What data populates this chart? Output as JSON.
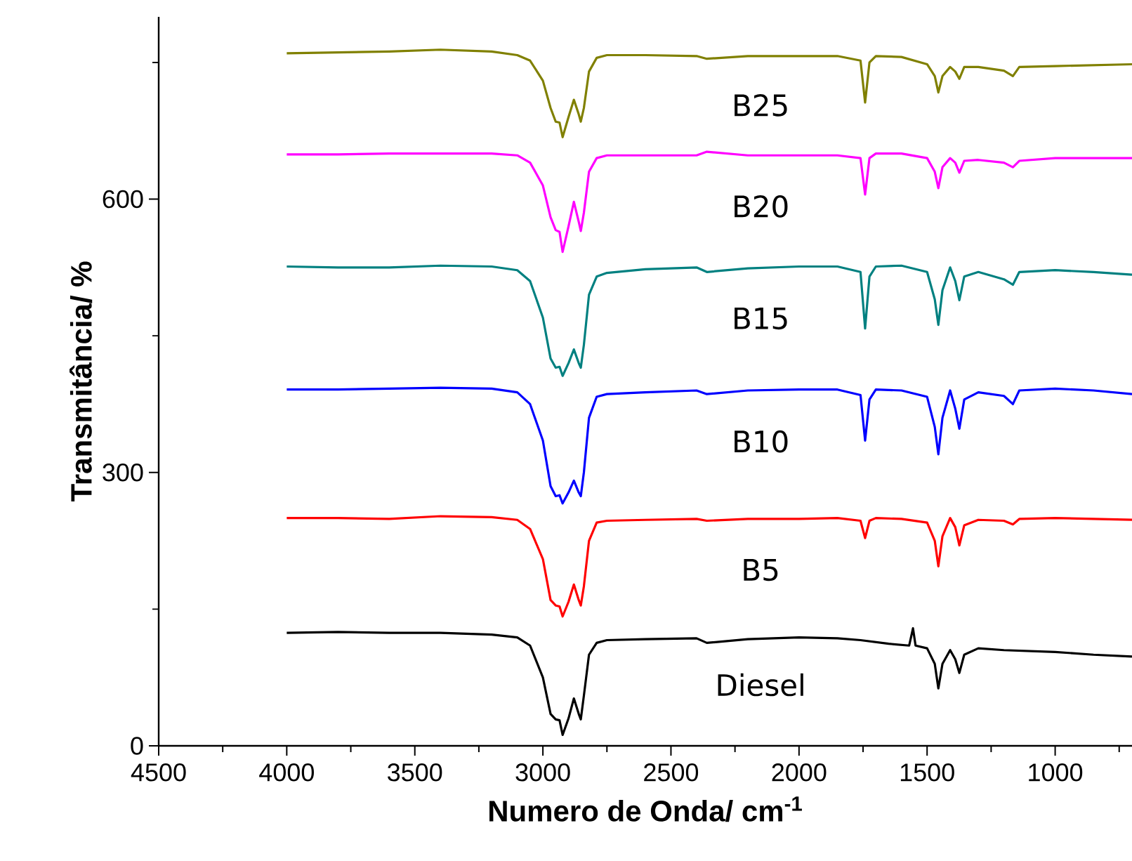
{
  "chart_data": {
    "type": "line",
    "xlabel": "Numero de Onda/ cm$^{-1}$",
    "ylabel": "Transmitância/ %",
    "xlim": [
      4500,
      700
    ],
    "ylim": [
      0,
      800
    ],
    "xticks": [
      4500,
      {
        "value": 4250,
        "label": null
      },
      4000,
      {
        "value": 3750,
        "label": null
      },
      3500,
      {
        "value": 3250,
        "label": null
      },
      3000,
      {
        "value": 2750,
        "label": null
      },
      2500,
      {
        "value": 2250,
        "label": null
      },
      2000,
      {
        "value": 1750,
        "label": null
      },
      1500,
      {
        "value": 1250,
        "label": null
      },
      1000,
      {
        "value": 750,
        "label": null
      }
    ],
    "yticks": [
      0,
      {
        "value": 150,
        "label": null
      },
      300,
      {
        "value": 450,
        "label": null
      },
      600,
      {
        "value": 750,
        "label": null
      }
    ],
    "legend": false,
    "grid": false,
    "marker": "none",
    "line_style": "solid",
    "series": [
      {
        "name": "B25",
        "color": "#808000",
        "x": [
          4000,
          3800,
          3600,
          3400,
          3200,
          3100,
          3050,
          3000,
          2970,
          2950,
          2935,
          2923,
          2900,
          2879,
          2860,
          2852,
          2840,
          2820,
          2790,
          2750,
          2600,
          2400,
          2360,
          2200,
          2000,
          1850,
          1760,
          1742,
          1725,
          1700,
          1600,
          1500,
          1470,
          1456,
          1440,
          1410,
          1390,
          1374,
          1355,
          1300,
          1200,
          1165,
          1140,
          1000,
          850,
          700
        ],
        "values": [
          760,
          761,
          762,
          764,
          762,
          758,
          752,
          730,
          700,
          685,
          684,
          668,
          690,
          709,
          693,
          685,
          700,
          740,
          755,
          758,
          758,
          757,
          754,
          757,
          757,
          757,
          752,
          706,
          750,
          757,
          756,
          748,
          735,
          717,
          735,
          745,
          740,
          732,
          745,
          745,
          741,
          735,
          745,
          746,
          747,
          748
        ]
      },
      {
        "name": "B20",
        "color": "#ff00ff",
        "x": [
          4000,
          3800,
          3600,
          3400,
          3200,
          3100,
          3050,
          3000,
          2970,
          2950,
          2935,
          2923,
          2900,
          2879,
          2860,
          2852,
          2840,
          2820,
          2790,
          2750,
          2600,
          2400,
          2360,
          2200,
          2000,
          1850,
          1760,
          1742,
          1725,
          1700,
          1600,
          1500,
          1470,
          1456,
          1440,
          1410,
          1390,
          1374,
          1355,
          1300,
          1200,
          1165,
          1140,
          1000,
          850,
          700
        ],
        "values": [
          649,
          649,
          650,
          650,
          650,
          648,
          640,
          615,
          580,
          566,
          564,
          542,
          570,
          597,
          575,
          565,
          585,
          630,
          645,
          648,
          648,
          648,
          652,
          648,
          648,
          648,
          645,
          605,
          645,
          650,
          650,
          645,
          630,
          612,
          635,
          645,
          640,
          629,
          642,
          643,
          640,
          635,
          642,
          645,
          645,
          645
        ]
      },
      {
        "name": "B15",
        "color": "#008080",
        "x": [
          4000,
          3800,
          3600,
          3400,
          3200,
          3100,
          3050,
          3000,
          2970,
          2950,
          2935,
          2923,
          2900,
          2879,
          2860,
          2852,
          2840,
          2820,
          2790,
          2750,
          2600,
          2400,
          2360,
          2200,
          2000,
          1850,
          1760,
          1742,
          1725,
          1700,
          1600,
          1500,
          1470,
          1456,
          1440,
          1410,
          1390,
          1374,
          1355,
          1300,
          1200,
          1165,
          1140,
          1000,
          850,
          700
        ],
        "values": [
          526,
          525,
          525,
          527,
          526,
          522,
          510,
          470,
          425,
          415,
          416,
          406,
          420,
          435,
          420,
          415,
          440,
          495,
          515,
          519,
          523,
          525,
          520,
          524,
          526,
          526,
          520,
          458,
          515,
          526,
          527,
          520,
          490,
          462,
          500,
          525,
          510,
          489,
          515,
          520,
          512,
          506,
          520,
          522,
          520,
          517
        ]
      },
      {
        "name": "B10",
        "color": "#0000ff",
        "x": [
          4000,
          3800,
          3600,
          3400,
          3200,
          3100,
          3050,
          3000,
          2970,
          2950,
          2935,
          2923,
          2900,
          2879,
          2860,
          2852,
          2840,
          2820,
          2790,
          2750,
          2600,
          2400,
          2360,
          2200,
          2000,
          1850,
          1760,
          1742,
          1725,
          1700,
          1600,
          1500,
          1470,
          1456,
          1440,
          1410,
          1390,
          1374,
          1355,
          1300,
          1200,
          1165,
          1140,
          1000,
          850,
          700
        ],
        "values": [
          391,
          391,
          392,
          393,
          392,
          388,
          375,
          335,
          285,
          274,
          275,
          266,
          278,
          291,
          278,
          274,
          300,
          360,
          383,
          386,
          388,
          390,
          386,
          390,
          391,
          391,
          385,
          335,
          380,
          391,
          390,
          383,
          350,
          320,
          360,
          390,
          370,
          348,
          380,
          388,
          384,
          375,
          390,
          392,
          390,
          386
        ]
      },
      {
        "name": "B5",
        "color": "#ff0000",
        "x": [
          4000,
          3800,
          3600,
          3400,
          3200,
          3100,
          3050,
          3000,
          2970,
          2950,
          2935,
          2923,
          2900,
          2879,
          2860,
          2852,
          2840,
          2820,
          2790,
          2750,
          2600,
          2400,
          2360,
          2200,
          2000,
          1850,
          1760,
          1742,
          1725,
          1700,
          1600,
          1500,
          1470,
          1456,
          1440,
          1410,
          1390,
          1374,
          1355,
          1300,
          1200,
          1165,
          1140,
          1000,
          850,
          700
        ],
        "values": [
          250,
          250,
          249,
          252,
          251,
          248,
          238,
          205,
          160,
          154,
          153,
          142,
          158,
          177,
          160,
          154,
          175,
          225,
          245,
          247,
          248,
          249,
          247,
          249,
          249,
          250,
          247,
          228,
          247,
          250,
          249,
          245,
          225,
          197,
          230,
          250,
          240,
          220,
          242,
          248,
          247,
          243,
          249,
          250,
          249,
          248
        ]
      },
      {
        "name": "Diesel",
        "color": "#000000",
        "x": [
          4000,
          3800,
          3600,
          3400,
          3200,
          3100,
          3050,
          3000,
          2970,
          2950,
          2935,
          2923,
          2900,
          2879,
          2860,
          2852,
          2840,
          2820,
          2790,
          2750,
          2600,
          2400,
          2360,
          2200,
          2000,
          1850,
          1760,
          1650,
          1570,
          1555,
          1545,
          1500,
          1470,
          1456,
          1440,
          1410,
          1390,
          1374,
          1355,
          1300,
          1200,
          1000,
          850,
          700
        ],
        "values": [
          124,
          125,
          124,
          124,
          122,
          119,
          110,
          75,
          35,
          29,
          28,
          12,
          30,
          52,
          35,
          29,
          55,
          100,
          113,
          116,
          117,
          118,
          113,
          117,
          119,
          118,
          116,
          112,
          110,
          129,
          110,
          107,
          90,
          63,
          90,
          105,
          95,
          80,
          100,
          107,
          105,
          103,
          100,
          98
        ]
      }
    ]
  }
}
